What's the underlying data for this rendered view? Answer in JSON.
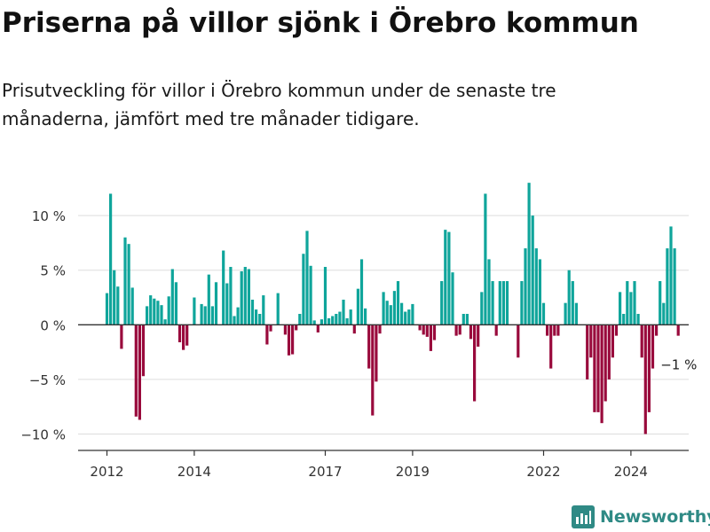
{
  "title": "Priserna på villor sjönk i Örebro kommun",
  "subtitle": "Prisutveckling för villor i Örebro kommun under de senaste tre månaderna, jämfört med tre månader tidigare.",
  "brand": {
    "name": "Newsworthy",
    "icon": "newsworthy-logo-icon",
    "color": "#2f8a85"
  },
  "colors": {
    "positive": "#0fa59b",
    "negative": "#990a3c",
    "grid": "#dddddd",
    "axis": "#333333"
  },
  "chart_data": {
    "type": "bar",
    "title": "Priserna på villor sjönk i Örebro kommun",
    "xlabel": "",
    "ylabel": "",
    "x_start": "2012-01",
    "x_interval": "month",
    "ylim": [
      -11.5,
      13.5
    ],
    "yticks": [
      10,
      5,
      0,
      -5,
      -10
    ],
    "ytick_labels": [
      "10 %",
      "5 %",
      "0 %",
      "−5 %",
      "−10 %"
    ],
    "xticks": [
      {
        "label": "2012",
        "date": "2012-01"
      },
      {
        "label": "2014",
        "date": "2014-01"
      },
      {
        "label": "2017",
        "date": "2017-01"
      },
      {
        "label": "2019",
        "date": "2019-01"
      },
      {
        "label": "2022",
        "date": "2022-01"
      },
      {
        "label": "2024",
        "date": "2024-01"
      }
    ],
    "grid": true,
    "annotation": {
      "text": "−1 %",
      "target": "last"
    },
    "values": [
      2.9,
      12.0,
      5.0,
      3.5,
      -2.2,
      8.0,
      7.4,
      3.4,
      -8.4,
      -8.7,
      -4.7,
      1.7,
      2.7,
      2.4,
      2.2,
      1.8,
      0.5,
      2.6,
      5.1,
      3.9,
      -1.6,
      -2.3,
      -1.9,
      0.0,
      2.5,
      0.0,
      1.9,
      1.7,
      4.6,
      1.7,
      3.9,
      0.0,
      6.8,
      3.8,
      5.3,
      0.8,
      1.6,
      4.9,
      5.3,
      5.1,
      2.3,
      1.4,
      1.0,
      2.7,
      -1.8,
      -0.6,
      0.0,
      2.9,
      0.0,
      -0.9,
      -2.8,
      -2.7,
      -0.5,
      1.0,
      6.5,
      8.6,
      5.4,
      0.4,
      -0.7,
      0.5,
      5.3,
      0.6,
      0.8,
      1.0,
      1.2,
      2.3,
      0.6,
      1.4,
      -0.8,
      3.3,
      6.0,
      1.5,
      -4.0,
      -8.3,
      -5.2,
      -0.8,
      3.0,
      2.2,
      1.8,
      3.1,
      4.0,
      2.0,
      1.2,
      1.4,
      1.9,
      0.0,
      -0.5,
      -0.9,
      -1.1,
      -2.4,
      -1.4,
      0.0,
      4.0,
      8.7,
      8.5,
      4.8,
      -1.0,
      -0.9,
      1.0,
      1.0,
      -1.3,
      -7.0,
      -2.0,
      3.0,
      12.0,
      6.0,
      4.0,
      -1.0,
      4.0,
      4.0,
      4.0,
      0.0,
      0.0,
      -3.0,
      4.0,
      7.0,
      13.0,
      10.0,
      7.0,
      6.0,
      2.0,
      -1.0,
      -4.0,
      -1.0,
      -1.0,
      0.0,
      2.0,
      5.0,
      4.0,
      2.0,
      0.0,
      0.0,
      -5.0,
      -3.0,
      -8.0,
      -8.0,
      -9.0,
      -7.0,
      -5.0,
      -3.0,
      -1.0,
      3.0,
      1.0,
      4.0,
      3.0,
      4.0,
      1.0,
      -3.0,
      -10.0,
      -8.0,
      -4.0,
      -1.0,
      4.0,
      2.0,
      7.0,
      9.0,
      7.0,
      -1.0
    ]
  }
}
